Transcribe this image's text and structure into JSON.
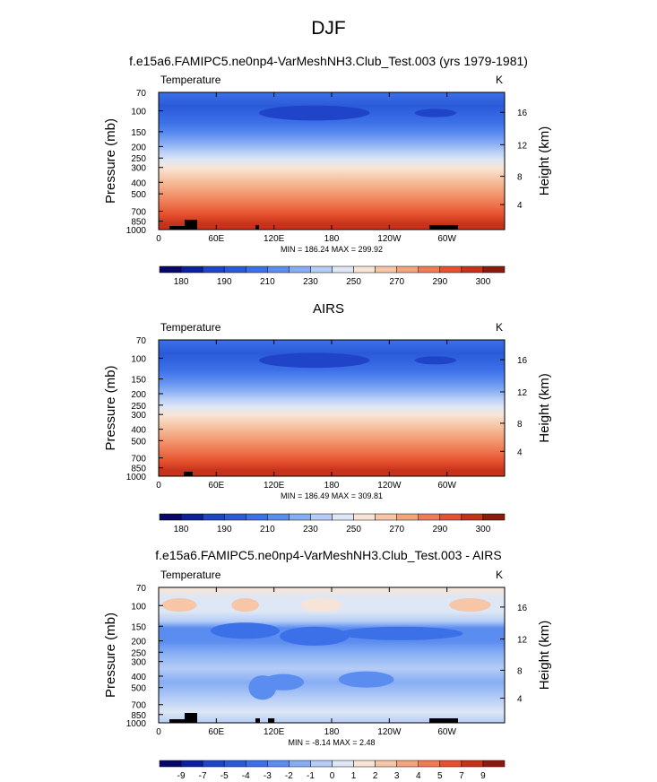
{
  "figure": {
    "season": "DJF",
    "panel_titles": [
      "f.e15a6.FAMIPC5.ne0np4-VarMeshNH3.Club_Test.003 (yrs 1979-1981)",
      "AIRS",
      "f.e15a6.FAMIPC5.ne0np4-VarMeshNH3.Club_Test.003 - AIRS"
    ]
  },
  "chart_data": [
    {
      "type": "heatmap",
      "title": "f.e15a6.FAMIPC5.ne0np4-VarMeshNH3.Club_Test.003 (yrs 1979-1981)",
      "variable": "Temperature",
      "units": "K",
      "ylabel": "Pressure (mb)",
      "ylabel_right": "Height (km)",
      "x_ticks": [
        "0",
        "60E",
        "120E",
        "180",
        "120W",
        "60W"
      ],
      "y_ticks": [
        "70",
        "100",
        "150",
        "200",
        "250",
        "300",
        "400",
        "500",
        "700",
        "850",
        "1000"
      ],
      "height_ticks": [
        "16",
        "12",
        "8",
        "4"
      ],
      "stats": "MIN = 186.24  MAX = 299.92",
      "min": 186.24,
      "max": 299.92,
      "colorbar_labels": [
        "180",
        "190",
        "210",
        "230",
        "250",
        "270",
        "290",
        "300"
      ]
    },
    {
      "type": "heatmap",
      "title": "AIRS",
      "variable": "Temperature",
      "units": "K",
      "ylabel": "Pressure (mb)",
      "ylabel_right": "Height (km)",
      "x_ticks": [
        "0",
        "60E",
        "120E",
        "180",
        "120W",
        "60W"
      ],
      "y_ticks": [
        "70",
        "100",
        "150",
        "200",
        "250",
        "300",
        "400",
        "500",
        "700",
        "850",
        "1000"
      ],
      "height_ticks": [
        "16",
        "12",
        "8",
        "4"
      ],
      "stats": "MIN = 186.49  MAX = 309.81",
      "min": 186.49,
      "max": 309.81,
      "colorbar_labels": [
        "180",
        "190",
        "210",
        "230",
        "250",
        "270",
        "290",
        "300"
      ]
    },
    {
      "type": "heatmap",
      "title": "f.e15a6.FAMIPC5.ne0np4-VarMeshNH3.Club_Test.003 - AIRS",
      "variable": "Temperature",
      "units": "K",
      "ylabel": "Pressure (mb)",
      "ylabel_right": "Height (km)",
      "x_ticks": [
        "0",
        "60E",
        "120E",
        "180",
        "120W",
        "60W"
      ],
      "y_ticks": [
        "70",
        "100",
        "150",
        "200",
        "250",
        "300",
        "400",
        "500",
        "700",
        "850",
        "1000"
      ],
      "height_ticks": [
        "16",
        "12",
        "8",
        "4"
      ],
      "stats": "MIN = -8.14  MAX =  2.48",
      "min": -8.14,
      "max": 2.48,
      "colorbar_labels": [
        "-9",
        "-7",
        "-5",
        "-4",
        "-3",
        "-2",
        "-1",
        "0",
        "1",
        "2",
        "3",
        "4",
        "5",
        "7",
        "9"
      ]
    }
  ],
  "palettes": {
    "abs": [
      "#08086b",
      "#0c1f9c",
      "#1f44c8",
      "#2a5ad8",
      "#3c70e8",
      "#5b8df0",
      "#86adf4",
      "#b5cdf6",
      "#dde7f5",
      "#f8e4d6",
      "#f6c6a6",
      "#f3a47c",
      "#ef7c55",
      "#e6512f",
      "#c6321a",
      "#8c1a0e"
    ],
    "diff": [
      "#08086b",
      "#0c1f9c",
      "#1f44c8",
      "#2a5ad8",
      "#3c70e8",
      "#5b8df0",
      "#86adf4",
      "#b5cdf6",
      "#dde7f5",
      "#f8e4d6",
      "#f6c6a6",
      "#f3a47c",
      "#ef7c55",
      "#e6512f",
      "#c6321a",
      "#8c1a0e"
    ]
  }
}
